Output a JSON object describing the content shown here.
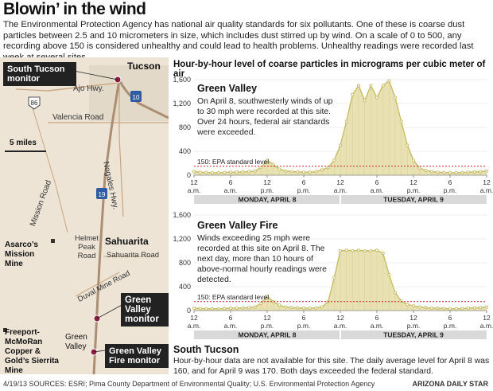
{
  "headline": "Blowin’ in the wind",
  "intro": "The Environmental Protection Agency has national air quality standards for six pollutants. One of these is coarse dust particles between 2.5 and 10 micrometers in size, which includes dust stirred up by wind. On a scale of 0 to 500, any recording above 150 is considered unhealthy and could lead to health problems. Unhealthy readings were recorded last week at several sites.",
  "map": {
    "city_labels": [
      "Tucson",
      "Sahuarita"
    ],
    "road_labels": [
      "Ajo Hwy.",
      "Valencia Road",
      "Nogales Hwy.",
      "Mission Road",
      "Sahuarita Road",
      "Duval Mine Road",
      "Helmet Peak Road"
    ],
    "route_shields": [
      "86",
      "10",
      "19"
    ],
    "scale_label": "5 miles",
    "places": [
      "Asarco’s Mission Mine",
      "Freeport-McMoRan Copper & Gold’s Sierrita Mine",
      "Green Valley"
    ],
    "callouts": [
      "South Tucson monitor",
      "Green Valley monitor",
      "Green Valley Fire monitor"
    ]
  },
  "chart_title": "Hour-by-hour level of coarse particles in micrograms per cubic meter of air",
  "chart_data": [
    {
      "type": "area",
      "title": "Green Valley",
      "note": "On April 8, southwesterly winds of up to 30 mph were recorded at this site. Over 24 hours, federal air standards were exceeded.",
      "x": [
        0,
        1,
        2,
        3,
        4,
        5,
        6,
        7,
        8,
        9,
        10,
        11,
        12,
        13,
        14,
        15,
        16,
        17,
        18,
        19,
        20,
        21,
        22,
        23,
        24,
        25,
        26,
        27,
        28,
        29,
        30,
        31,
        32,
        33,
        34,
        35,
        36,
        37,
        38,
        39,
        40,
        41,
        42,
        43,
        44,
        45,
        46,
        47,
        48
      ],
      "values": [
        60,
        50,
        45,
        40,
        40,
        45,
        50,
        50,
        55,
        60,
        70,
        130,
        250,
        180,
        100,
        70,
        60,
        55,
        50,
        50,
        60,
        90,
        130,
        250,
        500,
        900,
        1350,
        1500,
        1250,
        1500,
        1300,
        1500,
        1580,
        1300,
        900,
        500,
        250,
        120,
        80,
        60,
        50,
        45,
        40,
        40,
        45,
        50,
        55,
        60,
        70
      ],
      "ylim": [
        0,
        1600
      ],
      "yticks": [
        0,
        400,
        800,
        1200,
        1600
      ],
      "xtick_labels": [
        "12 a.m.",
        "6 a.m.",
        "12 p.m.",
        "6 p.m.",
        "12 a.m.",
        "6 a.m.",
        "12 p.m.",
        "6 p.m.",
        "12 a.m."
      ],
      "standard_label": "150: EPA standard level",
      "standard_value": 150,
      "day_labels": [
        "MONDAY, APRIL 8",
        "TUESDAY, APRIL 9"
      ]
    },
    {
      "type": "area",
      "title": "Green Valley Fire",
      "note": "Winds exceeding 25 mph were recorded at this site on April 8. The next day, more than 10 hours of above-normal hourly readings were detected.",
      "x": [
        0,
        1,
        2,
        3,
        4,
        5,
        6,
        7,
        8,
        9,
        10,
        11,
        12,
        13,
        14,
        15,
        16,
        17,
        18,
        19,
        20,
        21,
        22,
        23,
        24,
        25,
        26,
        27,
        28,
        29,
        30,
        31,
        32,
        33,
        34,
        35,
        36,
        37,
        38,
        39,
        40,
        41,
        42,
        43,
        44,
        45,
        46,
        47,
        48
      ],
      "values": [
        40,
        35,
        30,
        30,
        30,
        35,
        40,
        40,
        45,
        50,
        60,
        120,
        240,
        150,
        90,
        60,
        50,
        45,
        40,
        40,
        45,
        60,
        150,
        550,
        1000,
        1010,
        1000,
        1010,
        1000,
        1000,
        1010,
        960,
        600,
        300,
        160,
        100,
        80,
        60,
        50,
        40,
        40,
        35,
        30,
        30,
        35,
        40,
        45,
        50,
        60
      ],
      "ylim": [
        0,
        1600
      ],
      "yticks": [
        0,
        400,
        800,
        1200,
        1600
      ],
      "xtick_labels": [
        "12 a.m.",
        "6 a.m.",
        "12 p.m.",
        "6 p.m.",
        "12 a.m.",
        "6 a.m.",
        "12 p.m.",
        "6 p.m.",
        "12 a.m."
      ],
      "standard_label": "150: EPA standard level",
      "standard_value": 150,
      "day_labels": [
        "MONDAY, APRIL 8",
        "TUESDAY, APRIL 9"
      ]
    }
  ],
  "south_tucson": {
    "title": "South Tucson",
    "note": "Hour-by-hour data are not available for this site. The daily average level for April 8 was 160, and for April 9 was 170. Both days exceeded the federal standard."
  },
  "footer": {
    "sources": "4/19/13  SOURCES: ESRI; Pima County Department of Environmental Quality; U.S. Environmental Protection Agency",
    "credit": "ARIZONA DAILY STAR"
  },
  "colors": {
    "fill": "#e8e2b3",
    "line": "#c7bd65",
    "dots": "#c7bd65",
    "standard": "#c0272d",
    "grid": "#aaaaaa",
    "map_bg": "#ede4d6",
    "road": "#c9a57f",
    "interstate": "#ab8e73"
  }
}
